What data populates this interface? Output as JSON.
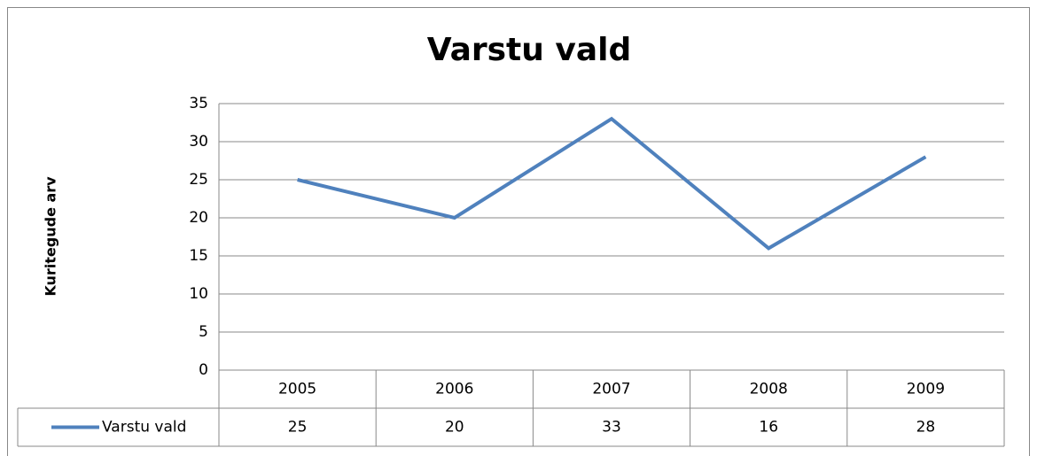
{
  "chart_data": {
    "type": "line",
    "title": "Varstu vald",
    "y_label": "Kuritegude arv",
    "categories": [
      "2005",
      "2006",
      "2007",
      "2008",
      "2009"
    ],
    "series": [
      {
        "name": "Varstu vald",
        "color": "#4f81bd",
        "values": [
          25,
          20,
          33,
          16,
          28
        ]
      }
    ],
    "ylim": [
      0,
      35
    ],
    "yticks": [
      0,
      5,
      10,
      15,
      20,
      25,
      30,
      35
    ],
    "grid": true,
    "data_table": true
  }
}
